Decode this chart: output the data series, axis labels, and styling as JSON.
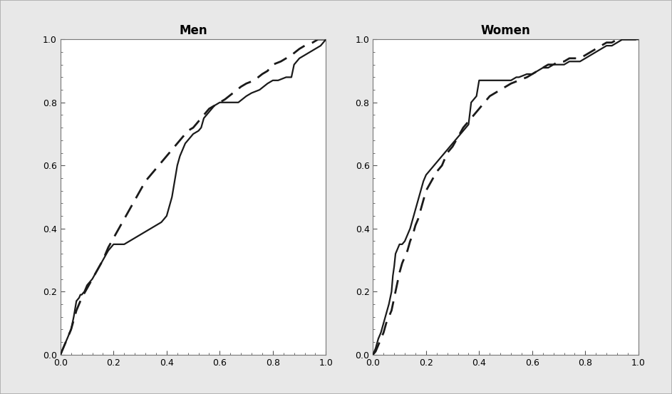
{
  "men_wc_solid": [
    [
      0.0,
      0.0
    ],
    [
      0.02,
      0.04
    ],
    [
      0.04,
      0.08
    ],
    [
      0.05,
      0.12
    ],
    [
      0.06,
      0.17
    ],
    [
      0.07,
      0.18
    ],
    [
      0.075,
      0.19
    ],
    [
      0.08,
      0.19
    ],
    [
      0.09,
      0.2
    ],
    [
      0.1,
      0.22
    ],
    [
      0.12,
      0.24
    ],
    [
      0.14,
      0.27
    ],
    [
      0.16,
      0.3
    ],
    [
      0.18,
      0.33
    ],
    [
      0.2,
      0.35
    ],
    [
      0.22,
      0.35
    ],
    [
      0.24,
      0.35
    ],
    [
      0.26,
      0.36
    ],
    [
      0.28,
      0.37
    ],
    [
      0.3,
      0.38
    ],
    [
      0.32,
      0.39
    ],
    [
      0.34,
      0.4
    ],
    [
      0.36,
      0.41
    ],
    [
      0.38,
      0.42
    ],
    [
      0.4,
      0.44
    ],
    [
      0.42,
      0.5
    ],
    [
      0.43,
      0.55
    ],
    [
      0.44,
      0.6
    ],
    [
      0.45,
      0.63
    ],
    [
      0.46,
      0.65
    ],
    [
      0.47,
      0.67
    ],
    [
      0.48,
      0.68
    ],
    [
      0.5,
      0.7
    ],
    [
      0.52,
      0.71
    ],
    [
      0.53,
      0.72
    ],
    [
      0.54,
      0.75
    ],
    [
      0.55,
      0.76
    ],
    [
      0.57,
      0.78
    ],
    [
      0.58,
      0.79
    ],
    [
      0.6,
      0.8
    ],
    [
      0.63,
      0.8
    ],
    [
      0.65,
      0.8
    ],
    [
      0.67,
      0.8
    ],
    [
      0.7,
      0.82
    ],
    [
      0.72,
      0.83
    ],
    [
      0.75,
      0.84
    ],
    [
      0.78,
      0.86
    ],
    [
      0.8,
      0.87
    ],
    [
      0.82,
      0.87
    ],
    [
      0.85,
      0.88
    ],
    [
      0.87,
      0.88
    ],
    [
      0.88,
      0.92
    ],
    [
      0.9,
      0.94
    ],
    [
      0.92,
      0.95
    ],
    [
      0.94,
      0.96
    ],
    [
      0.96,
      0.97
    ],
    [
      0.98,
      0.98
    ],
    [
      1.0,
      1.0
    ]
  ],
  "men_whr_dashed": [
    [
      0.0,
      0.0
    ],
    [
      0.02,
      0.04
    ],
    [
      0.04,
      0.08
    ],
    [
      0.05,
      0.11
    ],
    [
      0.06,
      0.14
    ],
    [
      0.07,
      0.16
    ],
    [
      0.08,
      0.18
    ],
    [
      0.1,
      0.21
    ],
    [
      0.12,
      0.24
    ],
    [
      0.14,
      0.27
    ],
    [
      0.16,
      0.3
    ],
    [
      0.18,
      0.34
    ],
    [
      0.2,
      0.37
    ],
    [
      0.22,
      0.4
    ],
    [
      0.24,
      0.43
    ],
    [
      0.26,
      0.46
    ],
    [
      0.28,
      0.49
    ],
    [
      0.3,
      0.52
    ],
    [
      0.32,
      0.55
    ],
    [
      0.34,
      0.57
    ],
    [
      0.36,
      0.59
    ],
    [
      0.38,
      0.61
    ],
    [
      0.4,
      0.63
    ],
    [
      0.42,
      0.65
    ],
    [
      0.44,
      0.67
    ],
    [
      0.46,
      0.69
    ],
    [
      0.48,
      0.71
    ],
    [
      0.5,
      0.72
    ],
    [
      0.52,
      0.74
    ],
    [
      0.54,
      0.76
    ],
    [
      0.56,
      0.78
    ],
    [
      0.58,
      0.79
    ],
    [
      0.6,
      0.8
    ],
    [
      0.62,
      0.81
    ],
    [
      0.65,
      0.83
    ],
    [
      0.68,
      0.85
    ],
    [
      0.7,
      0.86
    ],
    [
      0.73,
      0.87
    ],
    [
      0.76,
      0.89
    ],
    [
      0.78,
      0.9
    ],
    [
      0.8,
      0.92
    ],
    [
      0.83,
      0.93
    ],
    [
      0.85,
      0.94
    ],
    [
      0.87,
      0.95
    ],
    [
      0.9,
      0.97
    ],
    [
      0.92,
      0.98
    ],
    [
      0.95,
      0.99
    ],
    [
      0.97,
      1.0
    ],
    [
      1.0,
      1.0
    ]
  ],
  "women_wc_solid": [
    [
      0.0,
      0.0
    ],
    [
      0.01,
      0.02
    ],
    [
      0.02,
      0.05
    ],
    [
      0.03,
      0.07
    ],
    [
      0.04,
      0.1
    ],
    [
      0.05,
      0.13
    ],
    [
      0.06,
      0.16
    ],
    [
      0.07,
      0.2
    ],
    [
      0.075,
      0.25
    ],
    [
      0.08,
      0.28
    ],
    [
      0.085,
      0.32
    ],
    [
      0.09,
      0.33
    ],
    [
      0.1,
      0.35
    ],
    [
      0.11,
      0.35
    ],
    [
      0.12,
      0.36
    ],
    [
      0.13,
      0.38
    ],
    [
      0.14,
      0.4
    ],
    [
      0.15,
      0.43
    ],
    [
      0.16,
      0.46
    ],
    [
      0.17,
      0.49
    ],
    [
      0.18,
      0.52
    ],
    [
      0.19,
      0.55
    ],
    [
      0.2,
      0.57
    ],
    [
      0.22,
      0.59
    ],
    [
      0.24,
      0.61
    ],
    [
      0.26,
      0.63
    ],
    [
      0.28,
      0.65
    ],
    [
      0.3,
      0.67
    ],
    [
      0.32,
      0.69
    ],
    [
      0.34,
      0.71
    ],
    [
      0.36,
      0.73
    ],
    [
      0.37,
      0.8
    ],
    [
      0.38,
      0.81
    ],
    [
      0.39,
      0.82
    ],
    [
      0.4,
      0.87
    ],
    [
      0.42,
      0.87
    ],
    [
      0.44,
      0.87
    ],
    [
      0.46,
      0.87
    ],
    [
      0.48,
      0.87
    ],
    [
      0.5,
      0.87
    ],
    [
      0.52,
      0.87
    ],
    [
      0.54,
      0.88
    ],
    [
      0.55,
      0.88
    ],
    [
      0.58,
      0.89
    ],
    [
      0.6,
      0.89
    ],
    [
      0.62,
      0.9
    ],
    [
      0.64,
      0.91
    ],
    [
      0.66,
      0.91
    ],
    [
      0.68,
      0.92
    ],
    [
      0.7,
      0.92
    ],
    [
      0.72,
      0.92
    ],
    [
      0.74,
      0.93
    ],
    [
      0.76,
      0.93
    ],
    [
      0.78,
      0.93
    ],
    [
      0.8,
      0.94
    ],
    [
      0.82,
      0.95
    ],
    [
      0.84,
      0.96
    ],
    [
      0.86,
      0.97
    ],
    [
      0.88,
      0.98
    ],
    [
      0.9,
      0.98
    ],
    [
      0.92,
      0.99
    ],
    [
      0.94,
      1.0
    ],
    [
      0.96,
      1.0
    ],
    [
      0.98,
      1.0
    ],
    [
      1.0,
      1.0
    ]
  ],
  "women_whr_dashed": [
    [
      0.0,
      0.0
    ],
    [
      0.01,
      0.01
    ],
    [
      0.02,
      0.03
    ],
    [
      0.03,
      0.05
    ],
    [
      0.04,
      0.07
    ],
    [
      0.05,
      0.1
    ],
    [
      0.06,
      0.12
    ],
    [
      0.07,
      0.14
    ],
    [
      0.075,
      0.16
    ],
    [
      0.08,
      0.18
    ],
    [
      0.09,
      0.22
    ],
    [
      0.1,
      0.26
    ],
    [
      0.11,
      0.29
    ],
    [
      0.12,
      0.31
    ],
    [
      0.13,
      0.33
    ],
    [
      0.14,
      0.36
    ],
    [
      0.15,
      0.38
    ],
    [
      0.16,
      0.41
    ],
    [
      0.17,
      0.43
    ],
    [
      0.18,
      0.46
    ],
    [
      0.19,
      0.49
    ],
    [
      0.2,
      0.52
    ],
    [
      0.22,
      0.55
    ],
    [
      0.24,
      0.58
    ],
    [
      0.26,
      0.6
    ],
    [
      0.27,
      0.62
    ],
    [
      0.28,
      0.64
    ],
    [
      0.3,
      0.66
    ],
    [
      0.32,
      0.69
    ],
    [
      0.34,
      0.72
    ],
    [
      0.36,
      0.74
    ],
    [
      0.38,
      0.76
    ],
    [
      0.4,
      0.78
    ],
    [
      0.42,
      0.8
    ],
    [
      0.44,
      0.82
    ],
    [
      0.46,
      0.83
    ],
    [
      0.48,
      0.84
    ],
    [
      0.5,
      0.85
    ],
    [
      0.52,
      0.86
    ],
    [
      0.55,
      0.87
    ],
    [
      0.58,
      0.88
    ],
    [
      0.6,
      0.89
    ],
    [
      0.62,
      0.9
    ],
    [
      0.64,
      0.91
    ],
    [
      0.66,
      0.92
    ],
    [
      0.68,
      0.92
    ],
    [
      0.7,
      0.93
    ],
    [
      0.72,
      0.93
    ],
    [
      0.74,
      0.94
    ],
    [
      0.76,
      0.94
    ],
    [
      0.78,
      0.94
    ],
    [
      0.8,
      0.95
    ],
    [
      0.82,
      0.96
    ],
    [
      0.84,
      0.97
    ],
    [
      0.86,
      0.98
    ],
    [
      0.88,
      0.99
    ],
    [
      0.9,
      0.99
    ],
    [
      0.92,
      1.0
    ],
    [
      0.94,
      1.0
    ],
    [
      0.96,
      1.0
    ],
    [
      0.98,
      1.0
    ],
    [
      1.0,
      1.0
    ]
  ],
  "line_color": "#1a1a1a",
  "line_width": 1.6,
  "dashed_pattern": [
    7,
    4
  ],
  "title_men": "Men",
  "title_women": "Women",
  "title_fontsize": 12,
  "title_fontweight": "bold",
  "tick_fontsize": 9,
  "xlim": [
    0.0,
    1.0
  ],
  "ylim": [
    0.0,
    1.0
  ],
  "xticks": [
    0.0,
    0.2,
    0.4,
    0.6,
    0.8,
    1.0
  ],
  "yticks": [
    0.0,
    0.2,
    0.4,
    0.6,
    0.8,
    1.0
  ],
  "plot_bg": "#ffffff",
  "fig_bg": "#e8e8e8",
  "outer_rect_color": "#aaaaaa"
}
